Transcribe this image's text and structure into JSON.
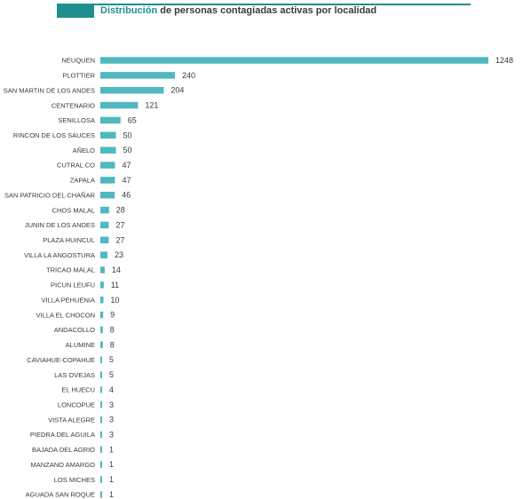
{
  "title": {
    "highlight": "Distribución",
    "rest": " de personas contagiadas activas por localidad"
  },
  "colors": {
    "accent": "#1f8f8f",
    "bar": "#4fb8c0",
    "text": "#3a3a3a"
  },
  "chart_data": {
    "type": "bar",
    "orientation": "horizontal",
    "title": "Distribución de personas contagiadas activas por localidad",
    "xlabel": "",
    "ylabel": "",
    "grid": false,
    "legend": "none",
    "xlim": [
      0,
      1248
    ],
    "categories": [
      "NEUQUEN",
      "PLOTTIER",
      "SAN MARTIN DE LOS ANDES",
      "CENTENARIO",
      "SENILLOSA",
      "RINCON DE LOS SAUCES",
      "AÑELO",
      "CUTRAL CO",
      "ZAPALA",
      "SAN PATRICIO DEL CHAÑAR",
      "CHOS MALAL",
      "JUNIN DE LOS ANDES",
      "PLAZA HUINCUL",
      "VILLA LA ANGOSTURA",
      "TRICAO MALAL",
      "PICUN LEUFU",
      "VILLA PEHUENIA",
      "VILLA EL CHOCON",
      "ANDACOLLO",
      "ALUMINE",
      "CAVIAHUE-COPAHUE",
      "LAS OVEJAS",
      "EL HUECU",
      "LONCOPUE",
      "VISTA ALEGRE",
      "PIEDRA DEL AGUILA",
      "BAJADA DEL AGRIO",
      "MANZANO AMARGO",
      "LOS MICHES",
      "AGUADA SAN ROQUE"
    ],
    "values": [
      1248,
      240,
      204,
      121,
      65,
      50,
      50,
      47,
      47,
      46,
      28,
      27,
      27,
      23,
      14,
      11,
      10,
      9,
      8,
      8,
      5,
      5,
      4,
      3,
      3,
      3,
      1,
      1,
      1,
      1
    ]
  }
}
